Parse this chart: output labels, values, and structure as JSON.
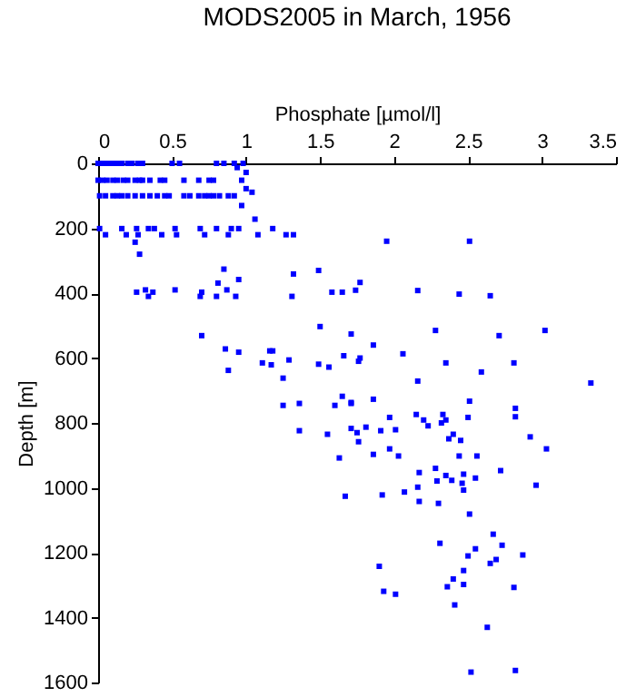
{
  "chart_data": {
    "type": "scatter",
    "title": "MODS2005 in March, 1956",
    "xlabel": "Phosphate [µmol/l]",
    "ylabel": "Depth [m]",
    "xlim": [
      0,
      3.5
    ],
    "xticks": [
      0,
      0.5,
      1,
      1.5,
      2,
      2.5,
      3,
      3.5
    ],
    "ylim": [
      1600,
      0
    ],
    "yticks": [
      0,
      200,
      400,
      600,
      800,
      1000,
      1200,
      1400,
      1600
    ],
    "grid": false,
    "legend": false,
    "marker": "square",
    "series": [
      {
        "color": "#0000ff",
        "x": [
          0,
          0.02,
          0.05,
          0.08,
          0.1,
          0.13,
          0.16,
          0.2,
          0.23,
          0.27,
          0.3,
          0.5,
          0.55,
          0.8,
          0.85,
          0.92,
          0.98,
          0,
          0.03,
          0.06,
          0.1,
          0.13,
          0.17,
          0.2,
          0.25,
          0.28,
          0.3,
          0.35,
          0.42,
          0.45,
          0.58,
          0.68,
          0.75,
          0.78,
          0.97,
          0.01,
          0.05,
          0.1,
          0.13,
          0.16,
          0.2,
          0.25,
          0.3,
          0.35,
          0.4,
          0.45,
          0.48,
          0.58,
          0.62,
          0.68,
          0.72,
          0.75,
          0.78,
          0.82,
          0.88,
          0.92,
          0.94,
          1.0,
          1.0,
          1.04,
          0.97,
          1.06,
          0.01,
          0.05,
          0.16,
          0.19,
          0.26,
          0.27,
          0.34,
          0.38,
          0.43,
          0.52,
          0.53,
          0.69,
          0.72,
          0.8,
          0.88,
          0.9,
          0.95,
          1.08,
          1.18,
          1.27,
          1.32,
          0.25,
          0.28,
          0.26,
          0.32,
          0.34,
          0.37,
          0.52,
          0.69,
          0.7,
          0.8,
          0.87,
          0.93,
          0.85,
          0.81,
          0.95,
          0.7,
          1.32,
          1.31,
          1.49,
          1.5,
          1.58,
          1.65,
          1.74,
          1.77,
          1.71,
          1.66,
          0.86,
          0.95,
          0.88,
          1.11,
          1.16,
          1.18,
          1.17,
          1.29,
          1.25,
          1.49,
          1.56,
          1.76,
          1.77,
          1.25,
          1.36,
          1.36,
          1.6,
          1.65,
          1.71,
          1.71,
          1.76,
          1.55,
          1.63,
          1.71,
          1.86,
          1.75,
          1.81,
          1.67,
          1.91,
          1.97,
          2.01,
          1.97,
          1.86,
          2.03,
          1.92,
          2.07,
          2.15,
          2.2,
          2.23,
          2.33,
          2.35,
          2.32,
          2.37,
          2.4,
          2.45,
          2.51,
          2.5,
          2.44,
          2.56,
          2.28,
          2.17,
          2.29,
          2.35,
          2.39,
          2.47,
          2.46,
          2.47,
          2.55,
          2.16,
          2.17,
          2.3,
          2.51,
          2.82,
          2.82,
          2.92,
          3.03,
          2.72,
          2.96,
          2.67,
          2.73,
          2.31,
          2.5,
          2.55,
          2.65,
          2.69,
          2.87,
          2.47,
          2.4,
          2.36,
          2.47,
          1.9,
          1.93,
          2.01,
          2.41,
          2.81,
          2.63,
          2.52,
          2.82,
          1.95,
          2.16,
          2.44,
          2.51,
          2.65,
          2.71,
          2.81,
          3.02,
          3.33,
          2.28,
          2.06,
          1.86,
          2.35,
          2.59,
          2.16
        ],
        "values": [
          0,
          0,
          0,
          0,
          0,
          0,
          0,
          0,
          0,
          0,
          0,
          0,
          0,
          0,
          0,
          0,
          0,
          52,
          52,
          52,
          52,
          52,
          52,
          52,
          52,
          52,
          52,
          52,
          52,
          52,
          52,
          52,
          52,
          52,
          52,
          100,
          100,
          100,
          100,
          100,
          100,
          100,
          100,
          100,
          100,
          100,
          100,
          100,
          100,
          100,
          100,
          100,
          100,
          100,
          100,
          100,
          13,
          28,
          78,
          89,
          130,
          172,
          201,
          220,
          201,
          220,
          201,
          220,
          201,
          201,
          220,
          201,
          220,
          201,
          220,
          201,
          220,
          201,
          201,
          220,
          201,
          220,
          220,
          243,
          280,
          397,
          390,
          410,
          397,
          390,
          410,
          397,
          410,
          390,
          410,
          326,
          369,
          358,
          531,
          341,
          410,
          330,
          503,
          397,
          397,
          391,
          367,
          526,
          593,
          572,
          582,
          638,
          615,
          578,
          578,
          621,
          606,
          662,
          619,
          628,
          610,
          600,
          746,
          740,
          824,
          746,
          718,
          740,
          817,
          858,
          835,
          908,
          737,
          727,
          830,
          813,
          1026,
          824,
          783,
          821,
          880,
          897,
          902,
          1022,
          1013,
          774,
          791,
          809,
          774,
          791,
          800,
          849,
          835,
          854,
          733,
          783,
          902,
          902,
          940,
          953,
          979,
          962,
          977,
          958,
          986,
          1007,
          970,
          998,
          1042,
          1048,
          1081,
          755,
          781,
          843,
          880,
          947,
          992,
          1143,
          1177,
          1171,
          1210,
          1188,
          1233,
          1221,
          1207,
          1255,
          1281,
          1305,
          1298,
          1242,
          1319,
          1328,
          1361,
          1307,
          1430,
          1568,
          1563,
          240,
          392,
          403,
          240,
          408,
          531,
          615,
          515,
          677,
          515,
          587,
          560,
          615,
          643,
          671
        ]
      }
    ]
  }
}
